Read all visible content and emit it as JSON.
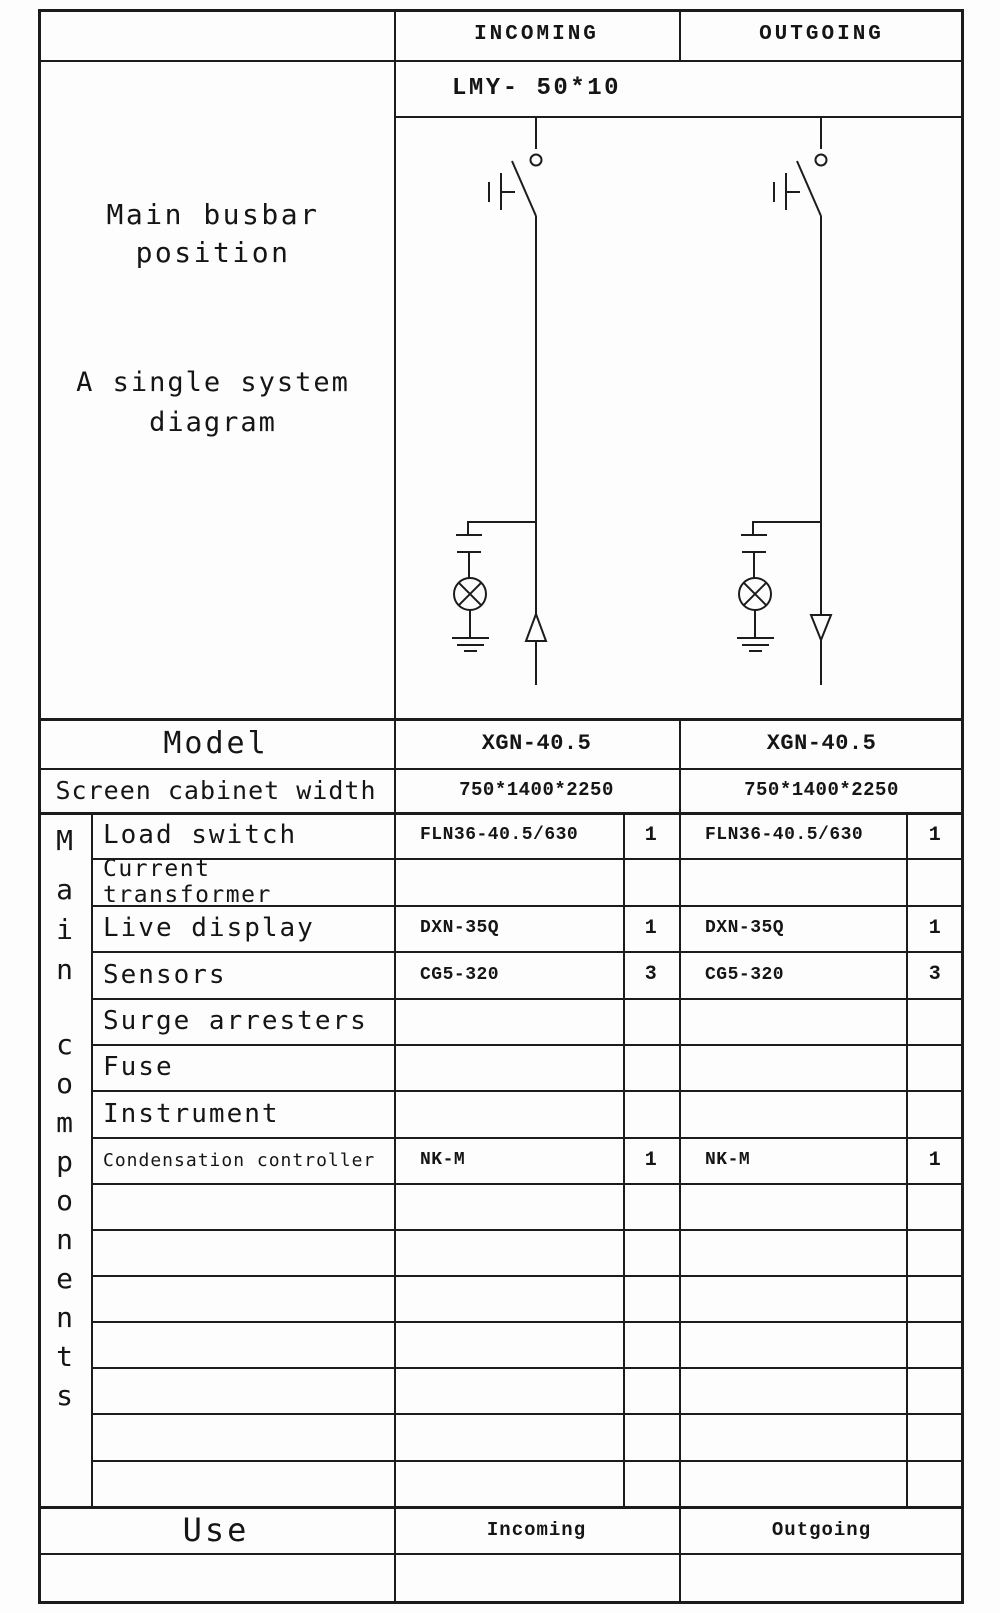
{
  "colors": {
    "ink": "#1c1c1c",
    "paper": "#fdfdfd"
  },
  "columns": {
    "incoming_header": "INCOMING",
    "outgoing_header": "OUTGOING"
  },
  "busbar_row": {
    "spec": "LMY- 50*10"
  },
  "side_labels": {
    "busbar_position": "Main busbar position",
    "system_diagram": "A single system diagram"
  },
  "model_row": {
    "label": "Model",
    "incoming": "XGN-40.5",
    "outgoing": "XGN-40.5"
  },
  "cabinet_row": {
    "label": "Screen cabinet width",
    "incoming": "750*1400*2250",
    "outgoing": "750*1400*2250"
  },
  "components": {
    "vertical_label": "Main components",
    "rows": [
      {
        "label": "Load switch",
        "incoming_model": "FLN36-40.5/630",
        "incoming_qty": "1",
        "outgoing_model": "FLN36-40.5/630",
        "outgoing_qty": "1"
      },
      {
        "label": "Current transformer",
        "incoming_model": "",
        "incoming_qty": "",
        "outgoing_model": "",
        "outgoing_qty": ""
      },
      {
        "label": "Live display",
        "incoming_model": "DXN-35Q",
        "incoming_qty": "1",
        "outgoing_model": "DXN-35Q",
        "outgoing_qty": "1"
      },
      {
        "label": "Sensors",
        "incoming_model": "CG5-320",
        "incoming_qty": "3",
        "outgoing_model": "CG5-320",
        "outgoing_qty": "3"
      },
      {
        "label": "Surge arresters",
        "incoming_model": "",
        "incoming_qty": "",
        "outgoing_model": "",
        "outgoing_qty": ""
      },
      {
        "label": "Fuse",
        "incoming_model": "",
        "incoming_qty": "",
        "outgoing_model": "",
        "outgoing_qty": ""
      },
      {
        "label": "Instrument",
        "incoming_model": "",
        "incoming_qty": "",
        "outgoing_model": "",
        "outgoing_qty": ""
      },
      {
        "label": "Condensation controller",
        "incoming_model": "NK-M",
        "incoming_qty": "1",
        "outgoing_model": "NK-M",
        "outgoing_qty": "1"
      },
      {
        "label": "",
        "incoming_model": "",
        "incoming_qty": "",
        "outgoing_model": "",
        "outgoing_qty": ""
      },
      {
        "label": "",
        "incoming_model": "",
        "incoming_qty": "",
        "outgoing_model": "",
        "outgoing_qty": ""
      },
      {
        "label": "",
        "incoming_model": "",
        "incoming_qty": "",
        "outgoing_model": "",
        "outgoing_qty": ""
      },
      {
        "label": "",
        "incoming_model": "",
        "incoming_qty": "",
        "outgoing_model": "",
        "outgoing_qty": ""
      },
      {
        "label": "",
        "incoming_model": "",
        "incoming_qty": "",
        "outgoing_model": "",
        "outgoing_qty": ""
      },
      {
        "label": "",
        "incoming_model": "",
        "incoming_qty": "",
        "outgoing_model": "",
        "outgoing_qty": ""
      },
      {
        "label": "",
        "incoming_model": "",
        "incoming_qty": "",
        "outgoing_model": "",
        "outgoing_qty": ""
      }
    ]
  },
  "use_row": {
    "label": "Use",
    "incoming": "Incoming",
    "outgoing": "Outgoing"
  },
  "diagram": {
    "incoming_symbols": [
      "disconnector-switch-icon",
      "earthing-contact-icon",
      "capacitive-divider-icon",
      "lamp-icon",
      "ground-icon",
      "arrow-up-icon"
    ],
    "outgoing_symbols": [
      "disconnector-switch-icon",
      "earthing-contact-icon",
      "capacitive-divider-icon",
      "lamp-icon",
      "ground-icon",
      "arrow-down-icon"
    ]
  }
}
